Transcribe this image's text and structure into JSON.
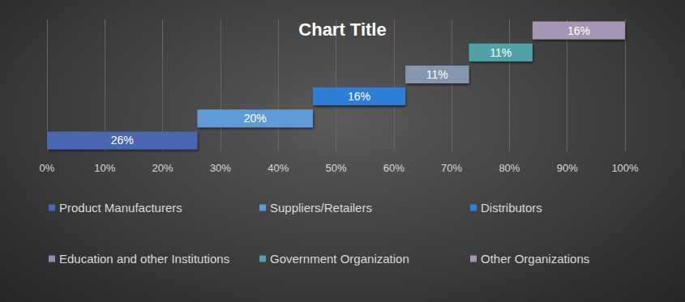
{
  "chart_data": {
    "type": "waterfall",
    "title": "Chart Title",
    "orientation": "horizontal",
    "series": [
      {
        "name": "Product Manufacturers",
        "color": "#4a66b0",
        "values": [
          26
        ],
        "value_labels": [
          "26%"
        ]
      },
      {
        "name": "Suppliers/Retailers",
        "color": "#5b9bd5",
        "values": [
          20
        ],
        "value_labels": [
          "20%"
        ]
      },
      {
        "name": "Distributors",
        "color": "#2f7ed8",
        "values": [
          16
        ],
        "value_labels": [
          "16%"
        ]
      },
      {
        "name": "Education and other Institutions",
        "color": "#8496b0",
        "values": [
          11
        ],
        "value_labels": [
          "11%"
        ]
      },
      {
        "name": "Government Organization",
        "color": "#4fa3a8",
        "values": [
          11
        ],
        "value_labels": [
          "11%"
        ]
      },
      {
        "name": "Other Organizations",
        "color": "#a597b3",
        "values": [
          16
        ],
        "value_labels": [
          "16%"
        ]
      }
    ],
    "xlim": [
      0,
      100
    ],
    "xticks": [
      {
        "value": 0,
        "label": "0%"
      },
      {
        "value": 10,
        "label": "10%"
      },
      {
        "value": 20,
        "label": "20%"
      },
      {
        "value": 30,
        "label": "30%"
      },
      {
        "value": 40,
        "label": "40%"
      },
      {
        "value": 50,
        "label": "50%"
      },
      {
        "value": 60,
        "label": "60%"
      },
      {
        "value": 70,
        "label": "70%"
      },
      {
        "value": 80,
        "label": "80%"
      },
      {
        "value": 90,
        "label": "90%"
      },
      {
        "value": 100,
        "label": "100%"
      }
    ],
    "grid": true,
    "legend": "bottom",
    "data_labels": true,
    "tick_labels": "x"
  }
}
